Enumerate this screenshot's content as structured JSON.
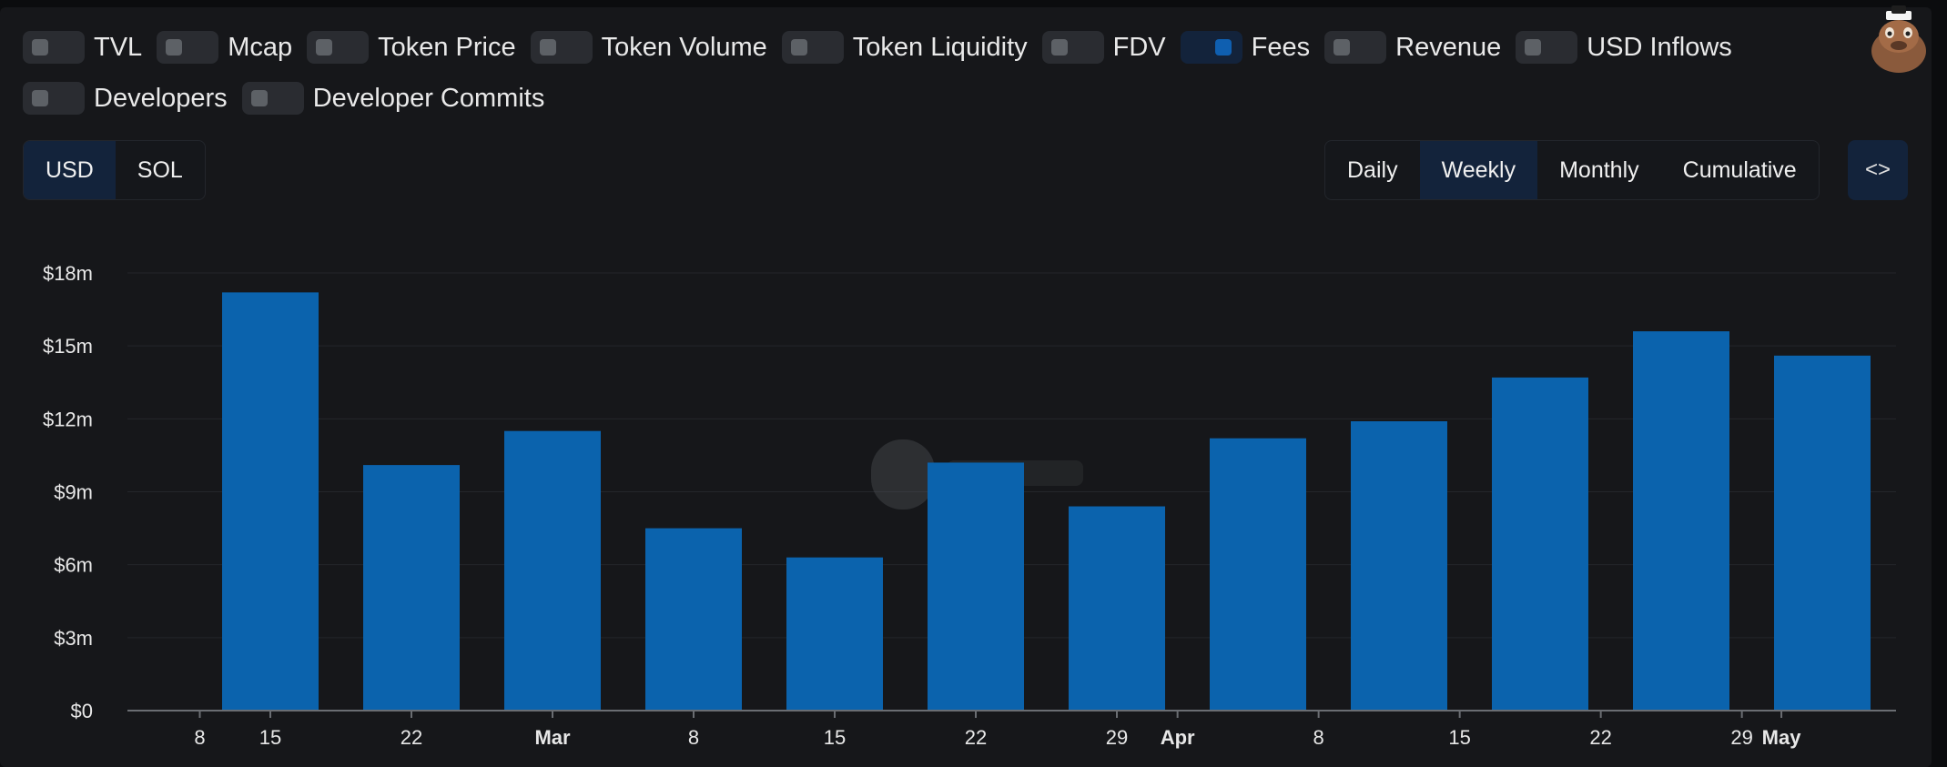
{
  "toggles": [
    [
      {
        "label": "TVL",
        "on": false
      },
      {
        "label": "Mcap",
        "on": false
      },
      {
        "label": "Token Price",
        "on": false
      },
      {
        "label": "Token Volume",
        "on": false
      },
      {
        "label": "Token Liquidity",
        "on": false
      },
      {
        "label": "FDV",
        "on": false
      },
      {
        "label": "Fees",
        "on": true
      },
      {
        "label": "Revenue",
        "on": false
      },
      {
        "label": "USD Inflows",
        "on": false
      }
    ],
    [
      {
        "label": "Developers",
        "on": false
      },
      {
        "label": "Developer Commits",
        "on": false
      }
    ]
  ],
  "currency": {
    "options": [
      "USD",
      "SOL"
    ],
    "selected": "USD"
  },
  "period": {
    "options": [
      "Daily",
      "Weekly",
      "Monthly",
      "Cumulative"
    ],
    "selected": "Weekly"
  },
  "embed_label": "<>",
  "colors": {
    "accent": "#0b63ad",
    "background": "#16171a"
  },
  "chart_data": {
    "type": "bar",
    "series": [
      {
        "name": "Fees",
        "color": "#0b63ad"
      }
    ],
    "categories": [
      "Feb 15",
      "Feb 22",
      "Mar 1",
      "Mar 8",
      "Mar 15",
      "Mar 22",
      "Mar 29",
      "Apr 5",
      "Apr 12",
      "Apr 19",
      "Apr 26",
      "May 3"
    ],
    "values": [
      17.2,
      10.1,
      11.5,
      7.5,
      6.3,
      10.2,
      8.4,
      11.2,
      11.9,
      13.7,
      15.6,
      14.6
    ],
    "unit": "$m",
    "ylim": [
      0,
      18
    ],
    "yticks": [
      {
        "v": 0,
        "label": "$0"
      },
      {
        "v": 3,
        "label": "$3m"
      },
      {
        "v": 6,
        "label": "$6m"
      },
      {
        "v": 9,
        "label": "$9m"
      },
      {
        "v": 12,
        "label": "$12m"
      },
      {
        "v": 15,
        "label": "$15m"
      },
      {
        "v": 18,
        "label": "$18m"
      }
    ],
    "xticks": [
      {
        "label": "8",
        "pos": -0.5,
        "bold": false
      },
      {
        "label": "15",
        "pos": 0,
        "bold": false
      },
      {
        "label": "22",
        "pos": 1,
        "bold": false
      },
      {
        "label": "Mar",
        "pos": 2,
        "bold": true
      },
      {
        "label": "8",
        "pos": 3,
        "bold": false
      },
      {
        "label": "15",
        "pos": 4,
        "bold": false
      },
      {
        "label": "22",
        "pos": 5,
        "bold": false
      },
      {
        "label": "29",
        "pos": 6,
        "bold": false
      },
      {
        "label": "Apr",
        "pos": 6.43,
        "bold": true
      },
      {
        "label": "8",
        "pos": 7.43,
        "bold": false
      },
      {
        "label": "15",
        "pos": 8.43,
        "bold": false
      },
      {
        "label": "22",
        "pos": 9.43,
        "bold": false
      },
      {
        "label": "29",
        "pos": 10.43,
        "bold": false
      },
      {
        "label": "May",
        "pos": 10.71,
        "bold": true
      }
    ],
    "grid": true,
    "legend": "none"
  }
}
